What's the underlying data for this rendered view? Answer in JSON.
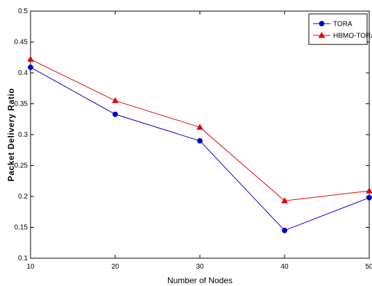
{
  "chart_data": {
    "type": "line",
    "title": "",
    "xlabel": "Number of Nodes",
    "ylabel": "Packet Delivery Ratio",
    "x": [
      10,
      20,
      30,
      40,
      50
    ],
    "x_ticks": [
      "10",
      "20",
      "30",
      "40",
      "50"
    ],
    "y_ticks": [
      "0.1",
      "0.15",
      "0.2",
      "0.25",
      "0.3",
      "0.35",
      "0.4",
      "0.45",
      "0.5"
    ],
    "xlim": [
      10,
      50
    ],
    "ylim": [
      0.1,
      0.5
    ],
    "grid": false,
    "legend_position": "top-right",
    "series": [
      {
        "name": "TORA",
        "values": [
          0.409,
          0.333,
          0.29,
          0.145,
          0.198
        ],
        "color": "#0000c8",
        "marker": "circle"
      },
      {
        "name": "HBMO-TORA",
        "values": [
          0.422,
          0.355,
          0.312,
          0.193,
          0.209
        ],
        "color": "#e00000",
        "marker": "triangle"
      }
    ]
  }
}
